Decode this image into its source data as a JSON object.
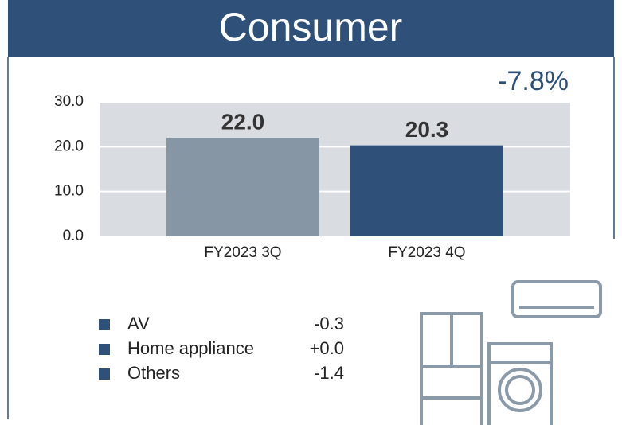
{
  "chart_data": {
    "type": "bar",
    "title": "Consumer",
    "annotation": "-7.8%",
    "categories": [
      "FY2023 3Q",
      "FY2023 4Q"
    ],
    "values": [
      22.0,
      20.3
    ],
    "value_labels": [
      "22.0",
      "20.3"
    ],
    "colors": [
      "#8796a4",
      "#2e5079"
    ],
    "ylim": [
      0,
      30
    ],
    "yticks": [
      {
        "value": 0,
        "label": "0.0"
      },
      {
        "value": 10,
        "label": "10.0"
      },
      {
        "value": 20,
        "label": "20.0"
      },
      {
        "value": 30,
        "label": "30.0"
      }
    ],
    "grid": true,
    "plot_background": "#d9dde2"
  },
  "breakdown": [
    {
      "name": "AV",
      "change": "-0.3"
    },
    {
      "name": "Home appliance",
      "change": "+0.0"
    },
    {
      "name": "Others",
      "change": "-1.4"
    }
  ]
}
